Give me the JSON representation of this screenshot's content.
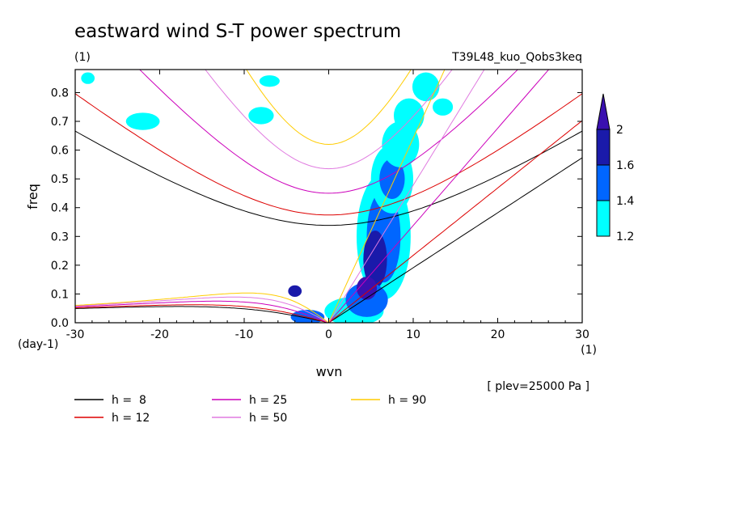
{
  "chart_data": {
    "type": "heatmap",
    "title": "eastward wind S-T power spectrum",
    "left_subtitle": "(1)",
    "right_subtitle": "T39L48_kuo_Qobs3keq",
    "xlabel": "wvn",
    "ylabel": "freq",
    "x_unit_label": "(1)",
    "y_unit_label": "(day-1)",
    "annotation": "[ plev=25000 Pa ]",
    "xlim": [
      -30,
      30
    ],
    "ylim": [
      0,
      0.88
    ],
    "x_ticks": [
      "-30",
      "-20",
      "-10",
      "0",
      "10",
      "20",
      "30"
    ],
    "y_ticks": [
      "0.0",
      "0.1",
      "0.2",
      "0.3",
      "0.4",
      "0.5",
      "0.6",
      "0.7",
      "0.8"
    ],
    "colorbar": {
      "levels": [
        "1.2",
        "1.4",
        "1.6",
        "2"
      ],
      "colors": [
        "#00ffff",
        "#0066ff",
        "#1a1aaa",
        "#3a10b0"
      ]
    },
    "dispersion_curves": [
      {
        "label": "h =  8",
        "h": 8,
        "color": "#000000"
      },
      {
        "label": "h = 12",
        "h": 12,
        "color": "#dd0000"
      },
      {
        "label": "h = 25",
        "h": 25,
        "color": "#cc00bb"
      },
      {
        "label": "h = 50",
        "h": 50,
        "color": "#e07ae0"
      },
      {
        "label": "h = 90",
        "h": 90,
        "color": "#ffcc00"
      }
    ],
    "power_regions": [
      {
        "k": 6.5,
        "f": 0.3,
        "rk": 3.2,
        "rf": 0.22,
        "level": 0
      },
      {
        "k": 6.5,
        "f": 0.3,
        "rk": 2.0,
        "rf": 0.16,
        "level": 1
      },
      {
        "k": 5.5,
        "f": 0.22,
        "rk": 1.4,
        "rf": 0.1,
        "level": 2
      },
      {
        "k": 7.5,
        "f": 0.5,
        "rk": 2.5,
        "rf": 0.12,
        "level": 0
      },
      {
        "k": 7.5,
        "f": 0.5,
        "rk": 1.5,
        "rf": 0.07,
        "level": 1
      },
      {
        "k": 8.5,
        "f": 0.62,
        "rk": 2.2,
        "rf": 0.08,
        "level": 0
      },
      {
        "k": 9.5,
        "f": 0.72,
        "rk": 1.8,
        "rf": 0.06,
        "level": 0
      },
      {
        "k": 11.5,
        "f": 0.82,
        "rk": 1.6,
        "rf": 0.05,
        "level": 0
      },
      {
        "k": 3.0,
        "f": 0.04,
        "rk": 3.5,
        "rf": 0.05,
        "level": 0
      },
      {
        "k": 4.5,
        "f": 0.08,
        "rk": 2.5,
        "rf": 0.06,
        "level": 1
      },
      {
        "k": 4.5,
        "f": 0.12,
        "rk": 1.2,
        "rf": 0.04,
        "level": 3
      },
      {
        "k": -2.5,
        "f": 0.02,
        "rk": 2.0,
        "rf": 0.025,
        "level": 1
      },
      {
        "k": -4.0,
        "f": 0.11,
        "rk": 0.8,
        "rf": 0.02,
        "level": 2
      },
      {
        "k": -22.0,
        "f": 0.7,
        "rk": 2.0,
        "rf": 0.03,
        "level": 0
      },
      {
        "k": -8.0,
        "f": 0.72,
        "rk": 1.5,
        "rf": 0.03,
        "level": 0
      },
      {
        "k": -7.0,
        "f": 0.84,
        "rk": 1.2,
        "rf": 0.02,
        "level": 0
      },
      {
        "k": -28.5,
        "f": 0.85,
        "rk": 0.8,
        "rf": 0.02,
        "level": 0
      },
      {
        "k": 13.5,
        "f": 0.75,
        "rk": 1.2,
        "rf": 0.03,
        "level": 0
      }
    ]
  }
}
